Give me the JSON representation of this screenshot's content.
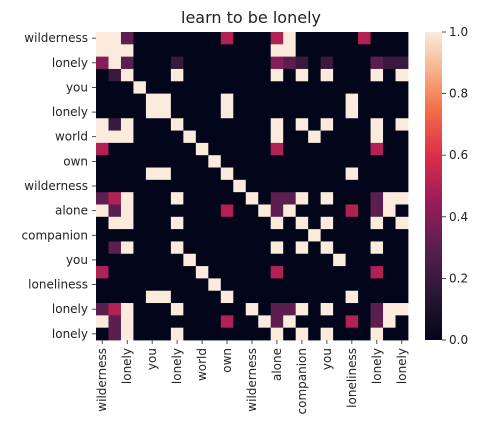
{
  "chart_data": {
    "type": "heatmap",
    "title": "learn to be lonely",
    "xlabel": "",
    "ylabel": "",
    "rows": 25,
    "cols": 25,
    "x_tick_labels": [
      "wilderness",
      "lonely",
      "you",
      "lonely",
      "world",
      "own",
      "wilderness",
      "alone",
      "companion",
      "you",
      "loneliness",
      "lonely",
      "lonely"
    ],
    "y_tick_labels": [
      "wilderness",
      "lonely",
      "you",
      "lonely",
      "world",
      "own",
      "wilderness",
      "alone",
      "companion",
      "you",
      "loneliness",
      "lonely",
      "lonely"
    ],
    "tick_every": 2,
    "colorbar": {
      "min": 0.0,
      "max": 1.0,
      "ticks": [
        "0.0",
        "0.2",
        "0.4",
        "0.6",
        "0.8",
        "1.0"
      ]
    },
    "matrix": [
      [
        1,
        1,
        0.3,
        0,
        0,
        0,
        0,
        0,
        0,
        0,
        0.5,
        0,
        0,
        0,
        0.5,
        1,
        0,
        0,
        0,
        0,
        0,
        0.5,
        0,
        0,
        0
      ],
      [
        1,
        1,
        1,
        0,
        0,
        0,
        0,
        0,
        0,
        0,
        0,
        0,
        0,
        0,
        1,
        1,
        0,
        0,
        0,
        0,
        0,
        0,
        0,
        0,
        0
      ],
      [
        0.4,
        1,
        0.3,
        0,
        0,
        0,
        0.2,
        0,
        0,
        0,
        0,
        0,
        0,
        0,
        0.4,
        0.3,
        0.2,
        0,
        0.2,
        0,
        0,
        0,
        0.3,
        0.2,
        0.2
      ],
      [
        0,
        0.2,
        1,
        0,
        0,
        0,
        1,
        0,
        0,
        0,
        0,
        0,
        0,
        0,
        1,
        0,
        1,
        0,
        1,
        0,
        0,
        0,
        1,
        0,
        1
      ],
      [
        0,
        0,
        0,
        1,
        0,
        0,
        0,
        0,
        0,
        0,
        0,
        0,
        0,
        0,
        0,
        0,
        0,
        0,
        0,
        0,
        0,
        0,
        0,
        0,
        0
      ],
      [
        0,
        0,
        0,
        0,
        1,
        1,
        0,
        0,
        0,
        0,
        1,
        0,
        0,
        0,
        0,
        0,
        0,
        0,
        0,
        0,
        1,
        0,
        0,
        0,
        0
      ],
      [
        0,
        0,
        0,
        0,
        1,
        1,
        0,
        0,
        0,
        0,
        1,
        0,
        0,
        0,
        0,
        0,
        0,
        0,
        0,
        0,
        1,
        0,
        0,
        0,
        0
      ],
      [
        1,
        0.2,
        1,
        0,
        0,
        0,
        1,
        0,
        0,
        0,
        0,
        0,
        0,
        0,
        1,
        0,
        1,
        0,
        1,
        0,
        0,
        0,
        1,
        0,
        1
      ],
      [
        1,
        1,
        1,
        0,
        0,
        0,
        0,
        1,
        0,
        0,
        0,
        0,
        0,
        0,
        1,
        0,
        0,
        1,
        0,
        0,
        0,
        0,
        1,
        0,
        0
      ],
      [
        0.5,
        0,
        0,
        0,
        0,
        0,
        0,
        0,
        1,
        0,
        0,
        0,
        0,
        0,
        0.5,
        0,
        0,
        0,
        0,
        0,
        0,
        0,
        0.5,
        0,
        0
      ],
      [
        0,
        0,
        0,
        0,
        0,
        0,
        0,
        0,
        0,
        1,
        0,
        0,
        0,
        0,
        0,
        0,
        0,
        0,
        0,
        0,
        0,
        0,
        0,
        0,
        0
      ],
      [
        0,
        0,
        0,
        0,
        1,
        1,
        0,
        0,
        0,
        0,
        1,
        0,
        0,
        0,
        0,
        0,
        0,
        0,
        0,
        0,
        1,
        0,
        0,
        0,
        0
      ],
      [
        0,
        0,
        0,
        0,
        0,
        0,
        0,
        0,
        0,
        0,
        0,
        1,
        0,
        0,
        0,
        0,
        0,
        0,
        0,
        0,
        0,
        0,
        0,
        0,
        0
      ],
      [
        0.3,
        0.5,
        1,
        0,
        0,
        0,
        1,
        0,
        0,
        0,
        0,
        0,
        1,
        0,
        0.3,
        0.3,
        1,
        0,
        1,
        0,
        0,
        0,
        0.3,
        1,
        1
      ],
      [
        1,
        0.3,
        1,
        0,
        0,
        0,
        0,
        0,
        0,
        0,
        0.5,
        0,
        0,
        1,
        0.3,
        1,
        0,
        0,
        0,
        0,
        0.5,
        0,
        0.3,
        1,
        0
      ],
      [
        0,
        1,
        1,
        0,
        0,
        0,
        1,
        0,
        0,
        0,
        0,
        0,
        0,
        0,
        1,
        0,
        1,
        0,
        1,
        0,
        0,
        0,
        1,
        0,
        1
      ],
      [
        0,
        0,
        0,
        0,
        0,
        0,
        0,
        0,
        0,
        0,
        0,
        0,
        0,
        0,
        0,
        0,
        0,
        1,
        0,
        0,
        0,
        0,
        0,
        0,
        0
      ],
      [
        0,
        0.3,
        1,
        0,
        0,
        0,
        1,
        0,
        0,
        0,
        0,
        0,
        0,
        0,
        1,
        0,
        1,
        0,
        1,
        0,
        0,
        0,
        1,
        0,
        0
      ],
      [
        0,
        0,
        0,
        0,
        0,
        0,
        0,
        1,
        0,
        0,
        0,
        0,
        0,
        0,
        0,
        0,
        0,
        0,
        0,
        1,
        0,
        0,
        0,
        0,
        0
      ],
      [
        0.5,
        0,
        0,
        0,
        0,
        0,
        0,
        0,
        1,
        0,
        0,
        0,
        0,
        0,
        0.5,
        0,
        0,
        0,
        0,
        0,
        0,
        0,
        0.5,
        0,
        0
      ],
      [
        0,
        0,
        0,
        0,
        0,
        0,
        0,
        0,
        0,
        1,
        0,
        0,
        0,
        0,
        0,
        0,
        0,
        0,
        0,
        0,
        0,
        0,
        0,
        0,
        0
      ],
      [
        0,
        0,
        0,
        0,
        1,
        1,
        0,
        0,
        0,
        0,
        1,
        0,
        0,
        0,
        0,
        0,
        0,
        0,
        0,
        0,
        1,
        0,
        0,
        0,
        0
      ],
      [
        0.3,
        0.5,
        1,
        0,
        0,
        0,
        1,
        0,
        0,
        0,
        0,
        0,
        1,
        0,
        0.3,
        0.3,
        1,
        0,
        1,
        0,
        0,
        0,
        0.3,
        1,
        1
      ],
      [
        1,
        0.3,
        1,
        0,
        0,
        0,
        0,
        0,
        0,
        0,
        0.5,
        0,
        0,
        1,
        0.3,
        1,
        0,
        0,
        0,
        0,
        0.5,
        0,
        0.3,
        1,
        0
      ],
      [
        0,
        0.3,
        1,
        0,
        0,
        0,
        1,
        0,
        0,
        0,
        0,
        0,
        0,
        0,
        1,
        0,
        1,
        0,
        1,
        0,
        0,
        0,
        1,
        0,
        0
      ]
    ]
  }
}
